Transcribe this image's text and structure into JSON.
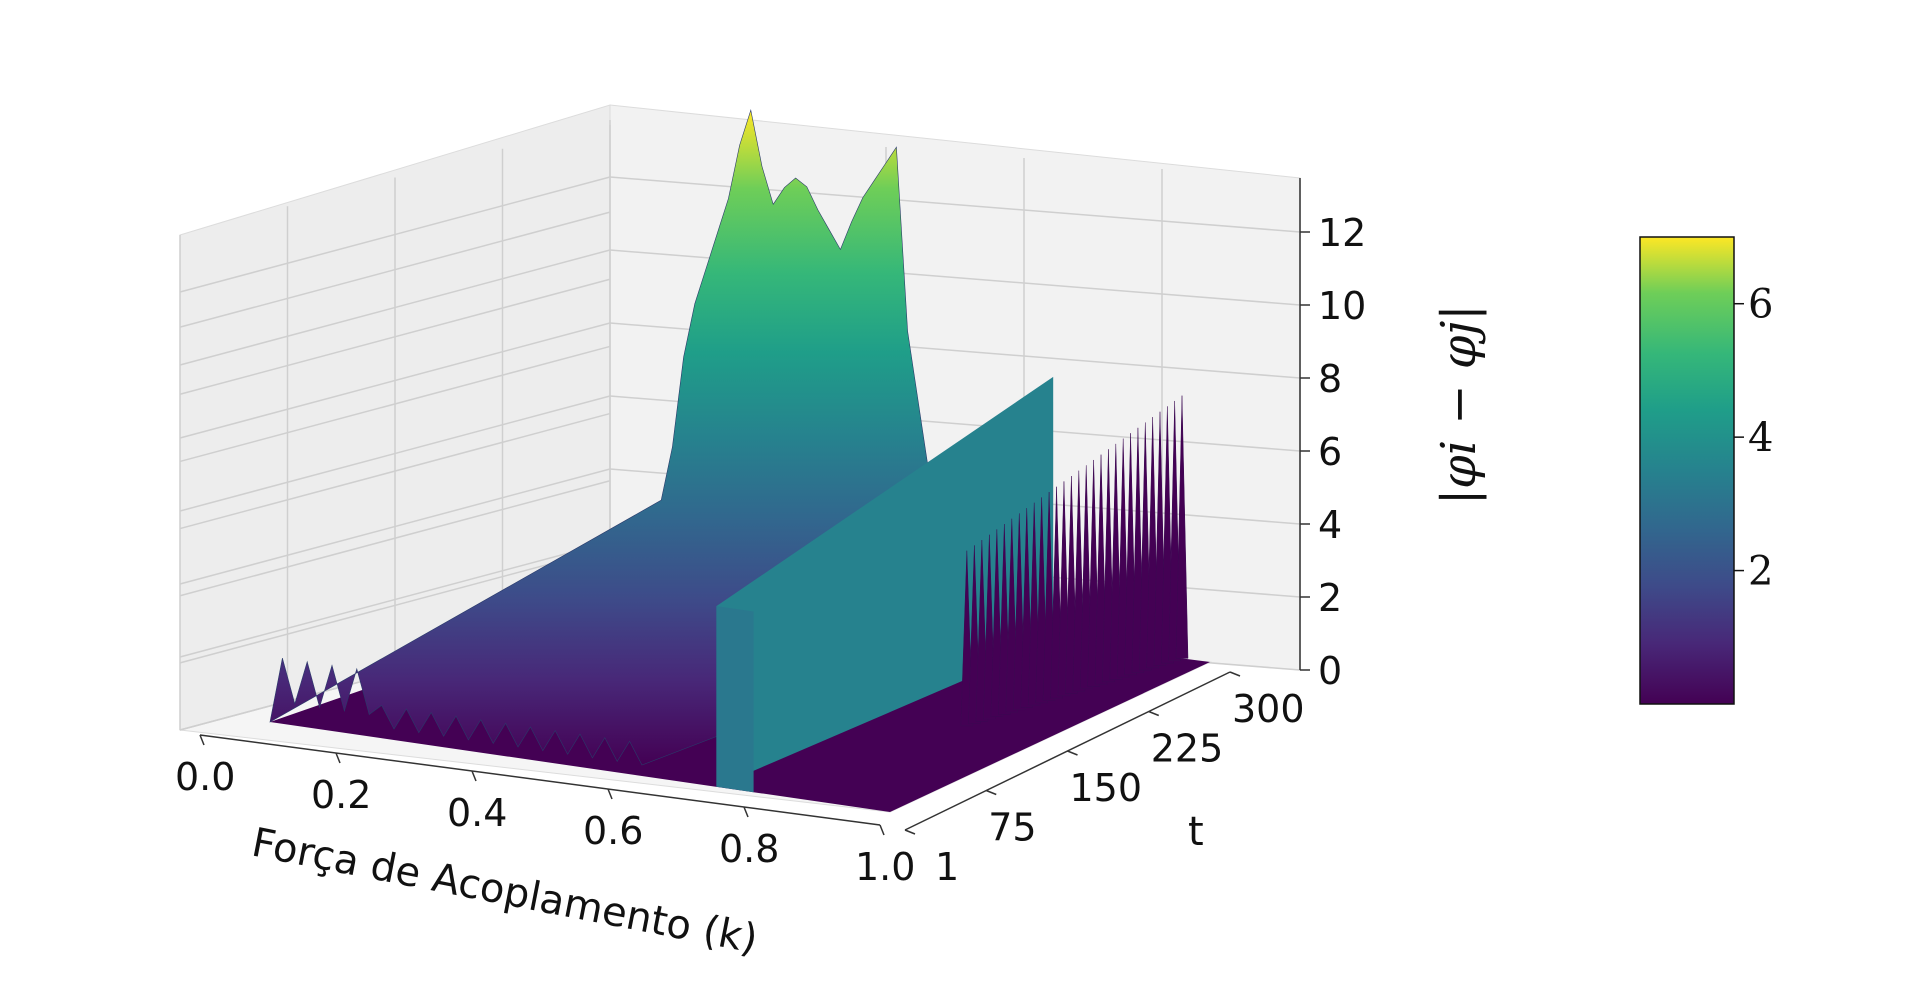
{
  "chart_data": {
    "type": "surface",
    "xlabel": "Força de Acoplamento (k)",
    "ylabel": "t",
    "zlabel": "|φi − φj|",
    "x_ticks": [
      "0.0",
      "0.2",
      "0.4",
      "0.6",
      "0.8",
      "1.0"
    ],
    "y_ticks": [
      "1",
      "75",
      "150",
      "225",
      "300"
    ],
    "z_ticks": [
      "0",
      "2",
      "4",
      "6",
      "8",
      "10",
      "12"
    ],
    "xlim": [
      0,
      1
    ],
    "ylim": [
      1,
      300
    ],
    "zlim": [
      0,
      14
    ],
    "colormap": "viridis",
    "colorbar": {
      "ticks": [
        "2",
        "4",
        "6"
      ],
      "range": [
        0,
        7
      ]
    },
    "surface_profile": {
      "k": [
        0.02,
        0.04,
        0.06,
        0.08,
        0.1,
        0.12,
        0.14,
        0.16,
        0.18,
        0.2,
        0.22,
        0.24,
        0.26,
        0.28,
        0.3,
        0.32,
        0.34,
        0.36,
        0.38,
        0.4,
        0.42,
        0.44,
        0.46,
        0.48,
        0.5,
        0.52,
        0.54,
        0.56,
        0.58,
        0.6
      ],
      "peak_diff": [
        2.5,
        4.0,
        6.5,
        8.0,
        9.0,
        10.0,
        11.0,
        12.5,
        13.5,
        12.0,
        11.0,
        11.5,
        11.8,
        11.6,
        11.0,
        10.5,
        10.0,
        10.8,
        11.5,
        12.0,
        12.5,
        13.0,
        8.0,
        6.0,
        4.0,
        2.5,
        2.0,
        1.5,
        1.2,
        0.8
      ]
    },
    "features": [
      {
        "name": "plateau",
        "k_range": [
          0.72,
          0.78
        ],
        "t_range": [
          1,
          300
        ],
        "value": 3.3
      },
      {
        "name": "spikes",
        "k_range": [
          0.86,
          0.95
        ],
        "t_range": [
          150,
          300
        ],
        "value": 6.0
      }
    ],
    "grid": true
  }
}
